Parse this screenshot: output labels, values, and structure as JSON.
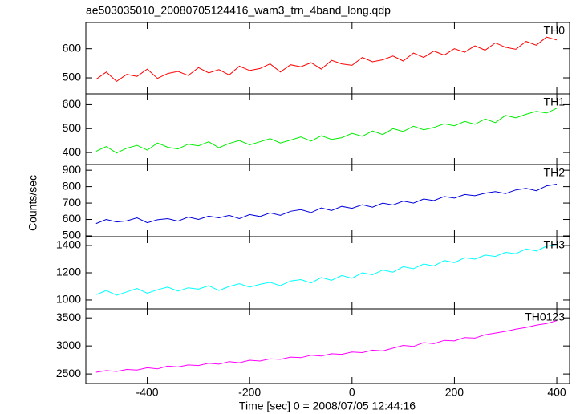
{
  "title": "ae503035010_20080705124416_wam3_trn_4band_long.qdp",
  "x_label": "Time [sec] 0 = 2008/07/05 12:44:16",
  "y_label": "Counts/sec",
  "chart_data": [
    {
      "type": "line",
      "label": "TH0",
      "color": "#ff0000",
      "xlim": [
        -520,
        425
      ],
      "ylim": [
        445,
        690
      ],
      "yticks": [
        500,
        600
      ],
      "x": [
        -500,
        -480,
        -460,
        -440,
        -420,
        -400,
        -380,
        -360,
        -340,
        -320,
        -300,
        -280,
        -260,
        -240,
        -220,
        -200,
        -180,
        -160,
        -140,
        -120,
        -100,
        -80,
        -60,
        -40,
        -20,
        0,
        20,
        40,
        60,
        80,
        100,
        120,
        140,
        160,
        180,
        200,
        220,
        240,
        260,
        280,
        300,
        320,
        340,
        360,
        380,
        400
      ],
      "values": [
        495,
        520,
        488,
        512,
        505,
        530,
        498,
        515,
        522,
        508,
        535,
        517,
        528,
        510,
        540,
        525,
        532,
        548,
        520,
        545,
        538,
        552,
        530,
        560,
        548,
        543,
        570,
        555,
        562,
        575,
        558,
        585,
        570,
        592,
        578,
        600,
        588,
        610,
        595,
        620,
        605,
        598,
        625,
        612,
        640,
        630
      ]
    },
    {
      "type": "line",
      "label": "TH1",
      "color": "#00ee00",
      "xlim": [
        -520,
        425
      ],
      "ylim": [
        350,
        645
      ],
      "yticks": [
        400,
        500,
        600
      ],
      "x": [
        -500,
        -480,
        -460,
        -440,
        -420,
        -400,
        -380,
        -360,
        -340,
        -320,
        -300,
        -280,
        -260,
        -240,
        -220,
        -200,
        -180,
        -160,
        -140,
        -120,
        -100,
        -80,
        -60,
        -40,
        -20,
        0,
        20,
        40,
        60,
        80,
        100,
        120,
        140,
        160,
        180,
        200,
        220,
        240,
        260,
        280,
        300,
        320,
        340,
        360,
        380,
        400
      ],
      "values": [
        405,
        425,
        398,
        418,
        430,
        410,
        440,
        422,
        415,
        435,
        428,
        445,
        420,
        438,
        450,
        432,
        445,
        458,
        440,
        452,
        465,
        448,
        470,
        455,
        462,
        480,
        468,
        490,
        475,
        500,
        488,
        510,
        495,
        505,
        520,
        512,
        530,
        518,
        540,
        525,
        555,
        545,
        560,
        572,
        565,
        585
      ]
    },
    {
      "type": "line",
      "label": "TH2",
      "color": "#0000dd",
      "xlim": [
        -520,
        425
      ],
      "ylim": [
        495,
        935
      ],
      "yticks": [
        500,
        600,
        700,
        800,
        900
      ],
      "x": [
        -500,
        -480,
        -460,
        -440,
        -420,
        -400,
        -380,
        -360,
        -340,
        -320,
        -300,
        -280,
        -260,
        -240,
        -220,
        -200,
        -180,
        -160,
        -140,
        -120,
        -100,
        -80,
        -60,
        -40,
        -20,
        0,
        20,
        40,
        60,
        80,
        100,
        120,
        140,
        160,
        180,
        200,
        220,
        240,
        260,
        280,
        300,
        320,
        340,
        360,
        380,
        400
      ],
      "values": [
        575,
        600,
        585,
        592,
        610,
        580,
        598,
        605,
        590,
        615,
        600,
        620,
        610,
        625,
        605,
        630,
        618,
        640,
        625,
        650,
        660,
        642,
        670,
        655,
        680,
        668,
        690,
        675,
        700,
        688,
        712,
        700,
        725,
        715,
        740,
        730,
        752,
        745,
        760,
        770,
        758,
        780,
        790,
        775,
        805,
        815
      ]
    },
    {
      "type": "line",
      "label": "TH3",
      "color": "#00ffff",
      "xlim": [
        -520,
        425
      ],
      "ylim": [
        935,
        1465
      ],
      "yticks": [
        1000,
        1200,
        1400
      ],
      "x": [
        -500,
        -480,
        -460,
        -440,
        -420,
        -400,
        -380,
        -360,
        -340,
        -320,
        -300,
        -280,
        -260,
        -240,
        -220,
        -200,
        -180,
        -160,
        -140,
        -120,
        -100,
        -80,
        -60,
        -40,
        -20,
        0,
        20,
        40,
        60,
        80,
        100,
        120,
        140,
        160,
        180,
        200,
        220,
        240,
        260,
        280,
        300,
        320,
        340,
        360,
        380,
        400
      ],
      "values": [
        1040,
        1070,
        1035,
        1060,
        1085,
        1050,
        1075,
        1095,
        1065,
        1090,
        1080,
        1105,
        1070,
        1100,
        1120,
        1095,
        1115,
        1130,
        1105,
        1140,
        1150,
        1125,
        1165,
        1145,
        1180,
        1160,
        1200,
        1185,
        1220,
        1205,
        1245,
        1230,
        1265,
        1250,
        1290,
        1275,
        1310,
        1300,
        1330,
        1320,
        1350,
        1340,
        1375,
        1360,
        1395,
        1410
      ]
    },
    {
      "type": "line",
      "label": "TH0123",
      "color": "#ff00ff",
      "xlim": [
        -520,
        425
      ],
      "ylim": [
        2330,
        3660
      ],
      "yticks": [
        2500,
        3000,
        3500
      ],
      "xticks": [
        -400,
        -200,
        0,
        200,
        400
      ],
      "x": [
        -500,
        -480,
        -460,
        -440,
        -420,
        -400,
        -380,
        -360,
        -340,
        -320,
        -300,
        -280,
        -260,
        -240,
        -220,
        -200,
        -180,
        -160,
        -140,
        -120,
        -100,
        -80,
        -60,
        -40,
        -20,
        0,
        20,
        40,
        60,
        80,
        100,
        120,
        140,
        160,
        180,
        200,
        220,
        240,
        260,
        280,
        300,
        320,
        340,
        360,
        380,
        400
      ],
      "values": [
        2530,
        2560,
        2545,
        2580,
        2570,
        2610,
        2590,
        2640,
        2625,
        2660,
        2650,
        2690,
        2675,
        2720,
        2700,
        2745,
        2730,
        2770,
        2760,
        2800,
        2790,
        2835,
        2820,
        2860,
        2850,
        2890,
        2880,
        2925,
        2910,
        2960,
        3010,
        2990,
        3060,
        3040,
        3100,
        3090,
        3150,
        3140,
        3200,
        3230,
        3260,
        3300,
        3330,
        3370,
        3400,
        3450
      ]
    }
  ]
}
